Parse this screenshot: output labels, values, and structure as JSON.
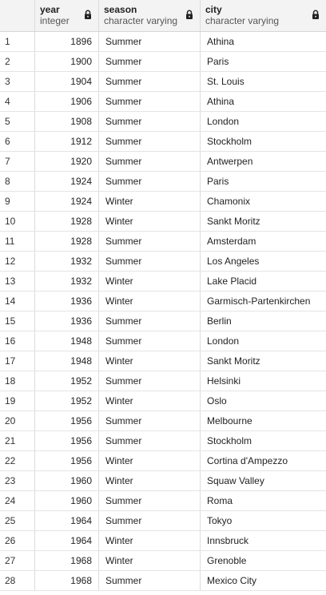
{
  "columns": [
    {
      "name": "year",
      "type": "integer"
    },
    {
      "name": "season",
      "type": "character varying"
    },
    {
      "name": "city",
      "type": "character varying"
    }
  ],
  "rows": [
    {
      "n": "1",
      "year": "1896",
      "season": "Summer",
      "city": "Athina"
    },
    {
      "n": "2",
      "year": "1900",
      "season": "Summer",
      "city": "Paris"
    },
    {
      "n": "3",
      "year": "1904",
      "season": "Summer",
      "city": "St. Louis"
    },
    {
      "n": "4",
      "year": "1906",
      "season": "Summer",
      "city": "Athina"
    },
    {
      "n": "5",
      "year": "1908",
      "season": "Summer",
      "city": "London"
    },
    {
      "n": "6",
      "year": "1912",
      "season": "Summer",
      "city": "Stockholm"
    },
    {
      "n": "7",
      "year": "1920",
      "season": "Summer",
      "city": "Antwerpen"
    },
    {
      "n": "8",
      "year": "1924",
      "season": "Summer",
      "city": "Paris"
    },
    {
      "n": "9",
      "year": "1924",
      "season": "Winter",
      "city": "Chamonix"
    },
    {
      "n": "10",
      "year": "1928",
      "season": "Winter",
      "city": "Sankt Moritz"
    },
    {
      "n": "11",
      "year": "1928",
      "season": "Summer",
      "city": "Amsterdam"
    },
    {
      "n": "12",
      "year": "1932",
      "season": "Summer",
      "city": "Los Angeles"
    },
    {
      "n": "13",
      "year": "1932",
      "season": "Winter",
      "city": "Lake Placid"
    },
    {
      "n": "14",
      "year": "1936",
      "season": "Winter",
      "city": "Garmisch-Partenkirchen"
    },
    {
      "n": "15",
      "year": "1936",
      "season": "Summer",
      "city": "Berlin"
    },
    {
      "n": "16",
      "year": "1948",
      "season": "Summer",
      "city": "London"
    },
    {
      "n": "17",
      "year": "1948",
      "season": "Winter",
      "city": "Sankt Moritz"
    },
    {
      "n": "18",
      "year": "1952",
      "season": "Summer",
      "city": "Helsinki"
    },
    {
      "n": "19",
      "year": "1952",
      "season": "Winter",
      "city": "Oslo"
    },
    {
      "n": "20",
      "year": "1956",
      "season": "Summer",
      "city": "Melbourne"
    },
    {
      "n": "21",
      "year": "1956",
      "season": "Summer",
      "city": "Stockholm"
    },
    {
      "n": "22",
      "year": "1956",
      "season": "Winter",
      "city": "Cortina d'Ampezzo"
    },
    {
      "n": "23",
      "year": "1960",
      "season": "Winter",
      "city": "Squaw Valley"
    },
    {
      "n": "24",
      "year": "1960",
      "season": "Summer",
      "city": "Roma"
    },
    {
      "n": "25",
      "year": "1964",
      "season": "Summer",
      "city": "Tokyo"
    },
    {
      "n": "26",
      "year": "1964",
      "season": "Winter",
      "city": "Innsbruck"
    },
    {
      "n": "27",
      "year": "1968",
      "season": "Winter",
      "city": "Grenoble"
    },
    {
      "n": "28",
      "year": "1968",
      "season": "Summer",
      "city": "Mexico City"
    }
  ]
}
